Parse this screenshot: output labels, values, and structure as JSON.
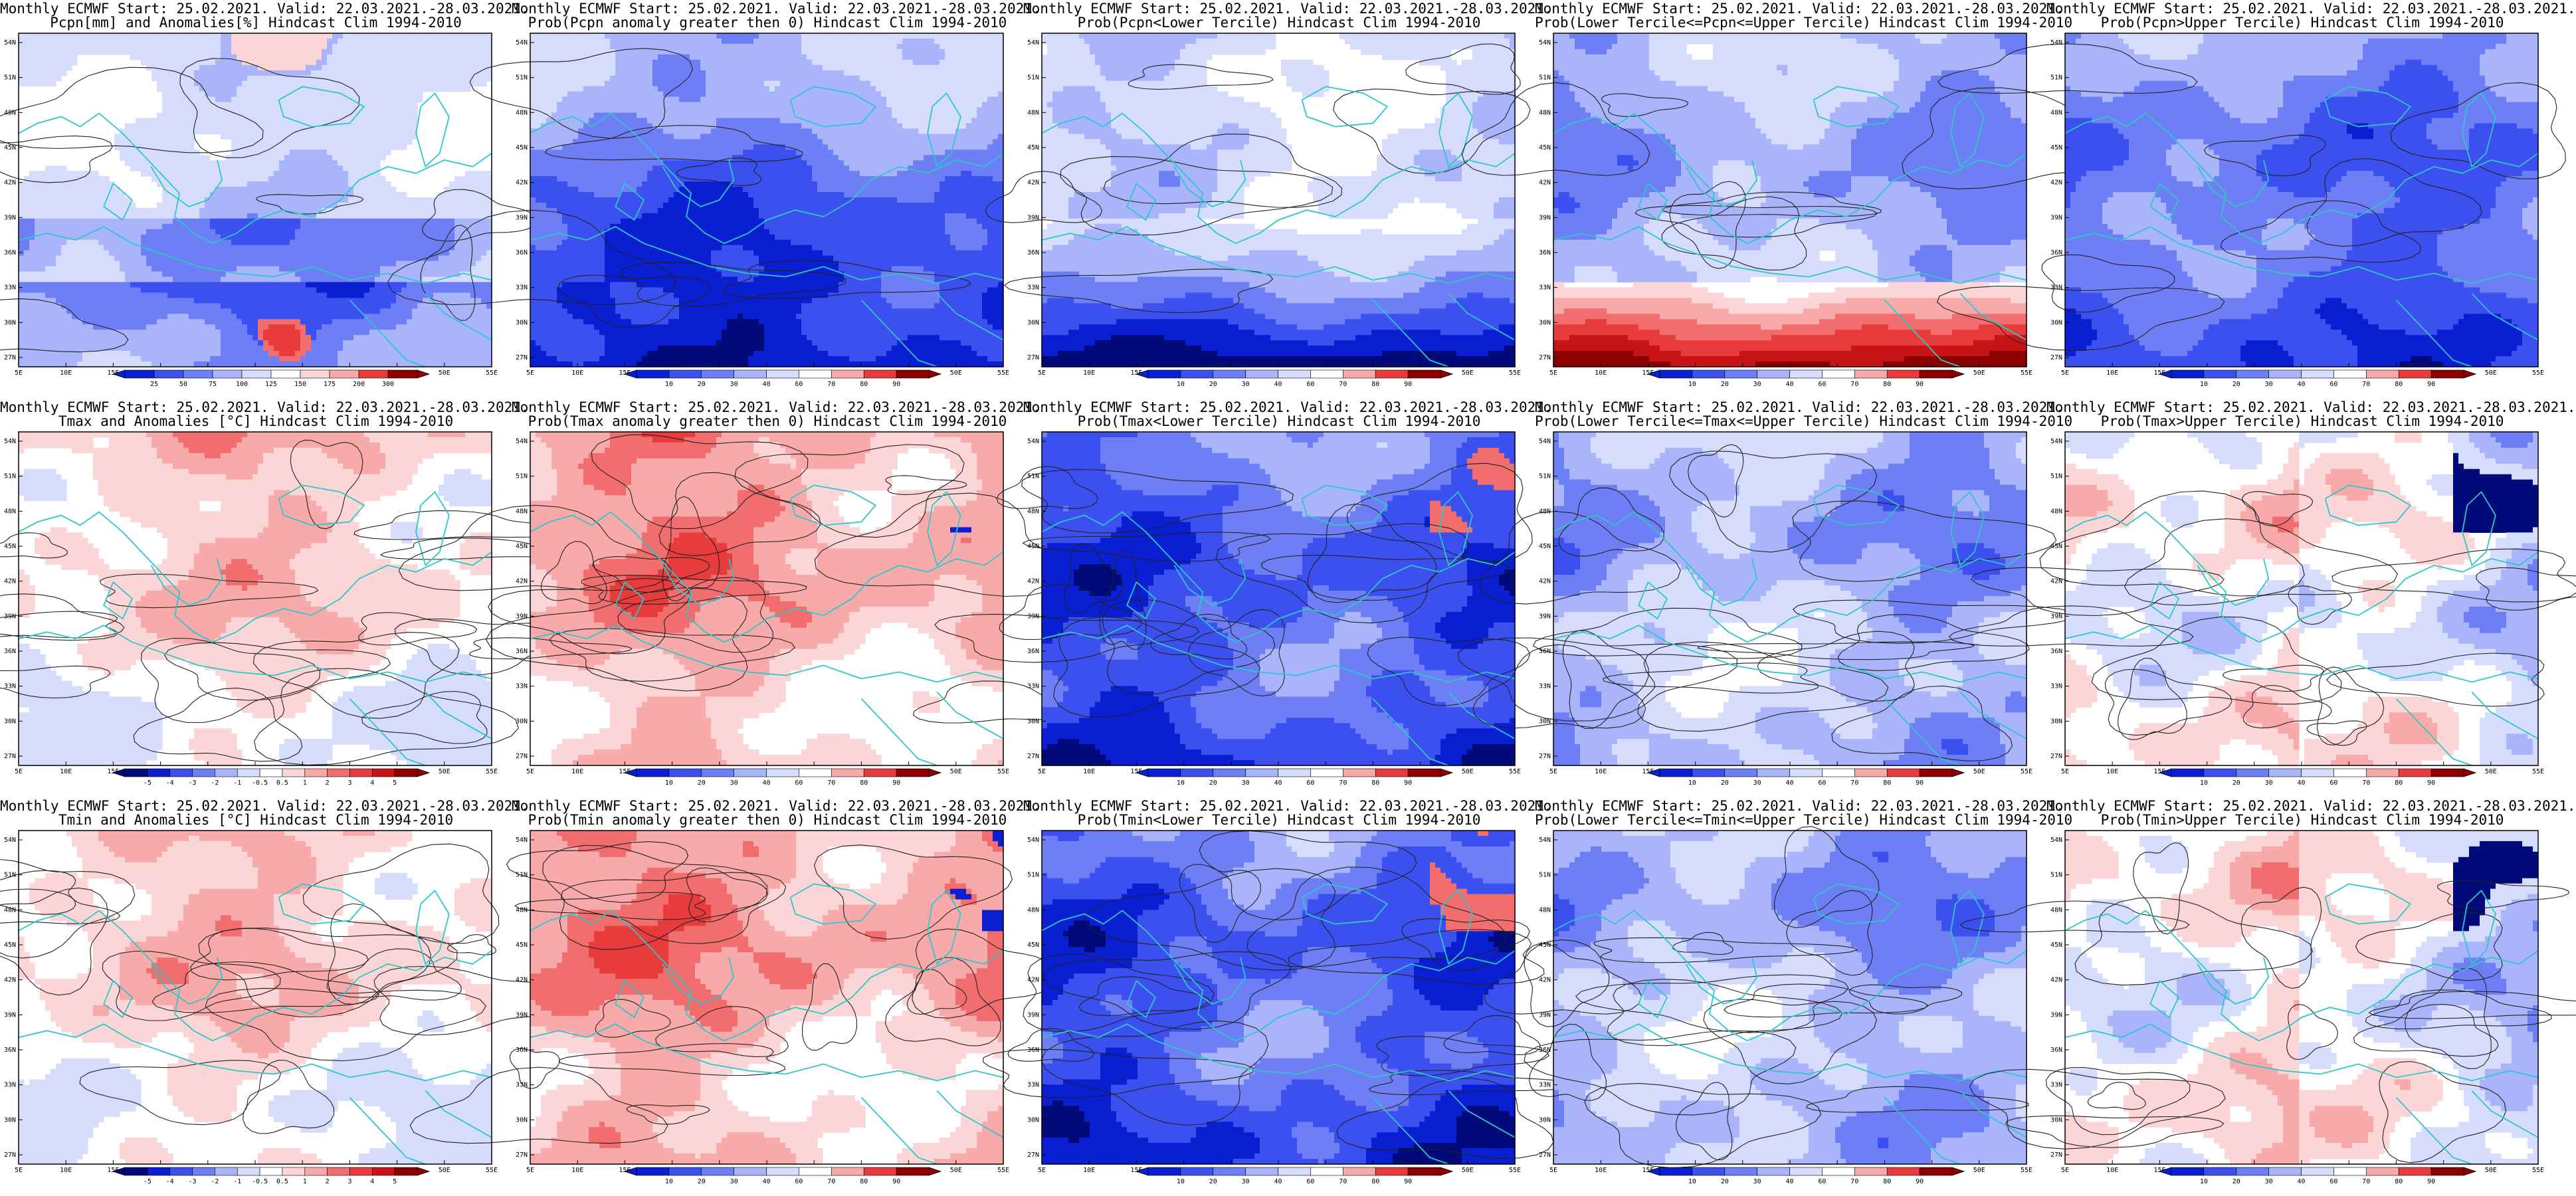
{
  "header": {
    "line1": "Monthly ECMWF Start: 25.02.2021. Valid: 22.03.2021.-28.03.2021."
  },
  "axes": {
    "lat_labels": [
      "54N",
      "51N",
      "48N",
      "45N",
      "42N",
      "39N",
      "36N",
      "33N",
      "30N",
      "27N"
    ],
    "lon_labels": [
      "5E",
      "10E",
      "15E",
      "20E",
      "25E",
      "30E",
      "35E",
      "40E",
      "45E",
      "50E",
      "55E"
    ]
  },
  "colorbars": {
    "pcpn_anom": [
      "25",
      "50",
      "75",
      "100",
      "125",
      "150",
      "175",
      "200",
      "300"
    ],
    "temp_anom": [
      "-5",
      "-4",
      "-3",
      "-2",
      "-1",
      "-0.5",
      "0.5",
      "1",
      "2",
      "3",
      "4",
      "5"
    ],
    "prob": [
      "10",
      "20",
      "30",
      "40",
      "60",
      "70",
      "80",
      "90"
    ]
  },
  "colors": {
    "coast": "#2cc8c8",
    "contour": "#222222",
    "blue_scale": [
      "#000a78",
      "#0a1ed2",
      "#3c50f0",
      "#6e7ff5",
      "#aab4fa",
      "#d6dcfc"
    ],
    "red_scale": [
      "#fcd6d6",
      "#f8aaaa",
      "#f26e6e",
      "#e83c3c",
      "#c81414",
      "#8c0000"
    ]
  },
  "rows": [
    {
      "panels": [
        {
          "line2": "Pcpn[mm] and Anomalies[%] Hindcast Clim 1994-2010",
          "scale": "pcpn_anom",
          "pattern": "pcpn"
        },
        {
          "line2": "Prob(Pcpn anomaly greater then 0) Hindcast Clim 1994-2010",
          "scale": "prob",
          "pattern": "pcpn_prob"
        },
        {
          "line2": "Prob(Pcpn<Lower Tercile) Hindcast Clim 1994-2010",
          "scale": "prob",
          "pattern": "pcpn_low"
        },
        {
          "line2": "Prob(Lower Tercile<=Pcpn<=Upper Tercile) Hindcast Clim 1994-2010",
          "scale": "prob",
          "pattern": "pcpn_mid"
        },
        {
          "line2": "Prob(Pcpn>Upper Tercile) Hindcast Clim 1994-2010",
          "scale": "prob",
          "pattern": "pcpn_up"
        }
      ]
    },
    {
      "panels": [
        {
          "line2": "Tmax and Anomalies [°C] Hindcast Clim 1994-2010",
          "scale": "temp_anom",
          "pattern": "warm"
        },
        {
          "line2": "Prob(Tmax anomaly greater then 0) Hindcast Clim 1994-2010",
          "scale": "prob",
          "pattern": "warm_strong"
        },
        {
          "line2": "Prob(Tmax<Lower Tercile) Hindcast Clim 1994-2010",
          "scale": "prob",
          "pattern": "cold_strong"
        },
        {
          "line2": "Prob(Lower Tercile<=Tmax<=Upper Tercile) Hindcast Clim 1994-2010",
          "scale": "prob",
          "pattern": "mid_blue"
        },
        {
          "line2": "Prob(Tmax>Upper Tercile) Hindcast Clim 1994-2010",
          "scale": "prob",
          "pattern": "mixed"
        }
      ]
    },
    {
      "panels": [
        {
          "line2": "Tmin and Anomalies [°C] Hindcast Clim 1994-2010",
          "scale": "temp_anom",
          "pattern": "warm"
        },
        {
          "line2": "Prob(Tmin anomaly greater then 0) Hindcast Clim 1994-2010",
          "scale": "prob",
          "pattern": "warm_strong"
        },
        {
          "line2": "Prob(Tmin<Lower Tercile) Hindcast Clim 1994-2010",
          "scale": "prob",
          "pattern": "cold_strong"
        },
        {
          "line2": "Prob(Lower Tercile<=Tmin<=Upper Tercile) Hindcast Clim 1994-2010",
          "scale": "prob",
          "pattern": "mid_blue"
        },
        {
          "line2": "Prob(Tmin>Upper Tercile) Hindcast Clim 1994-2010",
          "scale": "prob",
          "pattern": "mixed"
        }
      ]
    }
  ]
}
